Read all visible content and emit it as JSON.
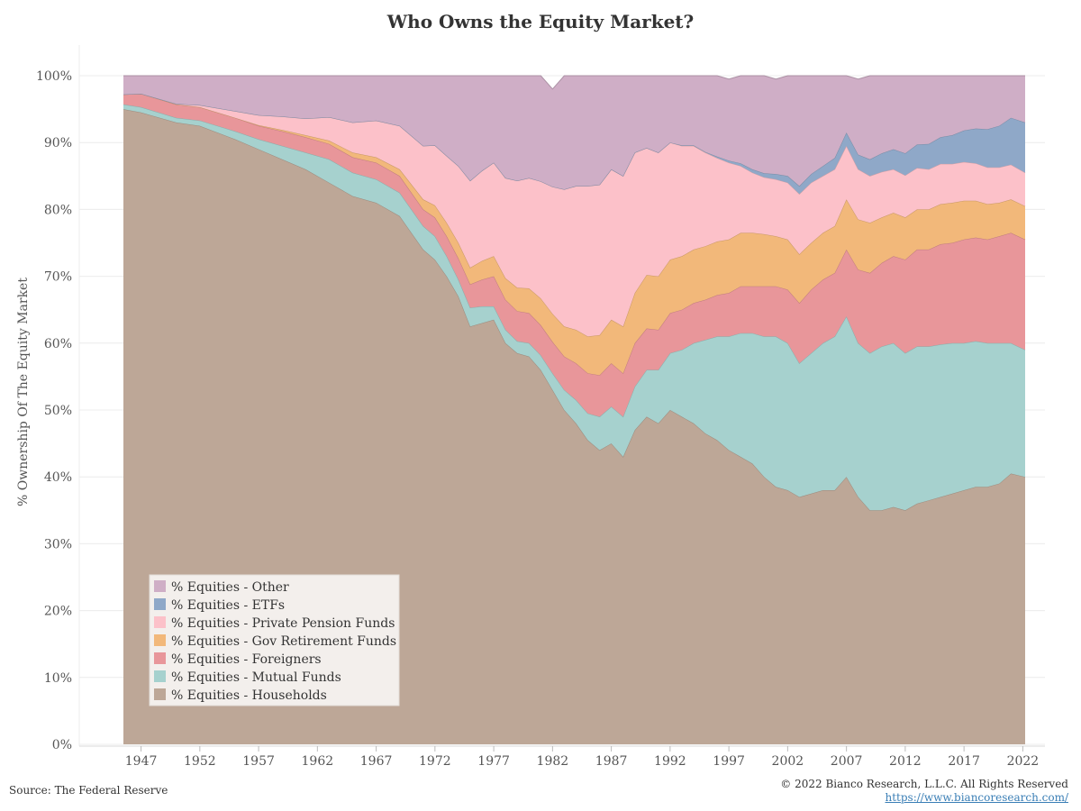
{
  "chart_data": {
    "type": "area",
    "stacked": true,
    "title": "Who Owns the Equity Market?",
    "ylabel": "% Ownership Of The Equity Market",
    "xlabel": "",
    "xlim": [
      1945.5,
      2022.2
    ],
    "ylim": [
      0,
      100
    ],
    "x_ticks": [
      1947,
      1952,
      1957,
      1962,
      1967,
      1972,
      1977,
      1982,
      1987,
      1992,
      1997,
      2002,
      2007,
      2012,
      2017,
      2022
    ],
    "y_ticks": [
      0,
      10,
      20,
      30,
      40,
      50,
      60,
      70,
      80,
      90,
      100
    ],
    "y_tick_labels": [
      "0%",
      "10%",
      "20%",
      "30%",
      "40%",
      "50%",
      "60%",
      "70%",
      "80%",
      "90%",
      "100%"
    ],
    "legend_position": "bottom-left",
    "grid": true,
    "x": [
      1945.5,
      1947,
      1950,
      1952,
      1955,
      1957,
      1959,
      1961,
      1963,
      1965,
      1967,
      1969,
      1971,
      1972,
      1973,
      1974,
      1975,
      1976,
      1977,
      1978,
      1979,
      1980,
      1981,
      1982,
      1983,
      1984,
      1985,
      1986,
      1987,
      1988,
      1989,
      1990,
      1991,
      1992,
      1993,
      1994,
      1995,
      1996,
      1997,
      1998,
      1999,
      2000,
      2001,
      2002,
      2003,
      2004,
      2005,
      2006,
      2007,
      2008,
      2009,
      2010,
      2011,
      2012,
      2013,
      2014,
      2015,
      2016,
      2017,
      2018,
      2019,
      2020,
      2021,
      2022.2
    ],
    "series": [
      {
        "name": "% Equities - Households",
        "color": "#bda797",
        "values": [
          95,
          94.5,
          93,
          92.5,
          90.5,
          89,
          87.5,
          86,
          84,
          82,
          81,
          79,
          74,
          72.5,
          70,
          67,
          62.5,
          63,
          63.5,
          60,
          58.5,
          58,
          56,
          53,
          50,
          48,
          45.5,
          44,
          45,
          43,
          47,
          49,
          48,
          50,
          49,
          48,
          46.5,
          45.5,
          44,
          43,
          42,
          40,
          38.5,
          38,
          37,
          37.5,
          38,
          38,
          40,
          37,
          35,
          35,
          35.5,
          35,
          36,
          36.5,
          37,
          37.5,
          38,
          38.5,
          38.5,
          39,
          40.5,
          40
        ]
      },
      {
        "name": "% Equities - Mutual Funds",
        "color": "#a6d1ce",
        "values": [
          0.7,
          0.8,
          0.7,
          0.8,
          1.2,
          1.5,
          2,
          2.5,
          3.5,
          3.5,
          3.5,
          3.5,
          3.5,
          3.5,
          3,
          2.5,
          2.8,
          2.5,
          2,
          2,
          1.8,
          2,
          2.2,
          2.5,
          3,
          3.5,
          4,
          5,
          5.5,
          6,
          6.5,
          7,
          8,
          8.5,
          10,
          12,
          14,
          15.5,
          17,
          18.5,
          19.5,
          21,
          22.5,
          22,
          20,
          21,
          22,
          23,
          24,
          23,
          23.5,
          24.5,
          24.5,
          23.5,
          23.5,
          23,
          22.8,
          22.5,
          22,
          21.8,
          21.5,
          21,
          19.5,
          19
        ]
      },
      {
        "name": "% Equities - Foreigners",
        "color": "#e8969a",
        "values": [
          1.5,
          2,
          2,
          2,
          2,
          2,
          2.2,
          2.3,
          2.3,
          2.3,
          2.5,
          2.5,
          2.5,
          2.8,
          3,
          3.2,
          3.5,
          4,
          4.5,
          4.5,
          4.5,
          4.5,
          4.5,
          4.7,
          5,
          5.5,
          6,
          6.2,
          6.5,
          6.5,
          6.5,
          6.2,
          6,
          6,
          6,
          6,
          6,
          6.2,
          6.5,
          7,
          7,
          7.5,
          7.5,
          8,
          9,
          9.5,
          9.5,
          9.5,
          10,
          11,
          12,
          12.5,
          13,
          14,
          14.5,
          14.5,
          15,
          15,
          15.5,
          15.5,
          15.5,
          16,
          16.5,
          16.5
        ]
      },
      {
        "name": "% Equities - Gov Retirement Funds",
        "color": "#f2b87a",
        "values": [
          0,
          0,
          0,
          0,
          0,
          0.1,
          0.2,
          0.3,
          0.5,
          0.7,
          0.8,
          1,
          1.5,
          1.8,
          2,
          2.3,
          2.5,
          2.8,
          3,
          3.2,
          3.5,
          3.7,
          4,
          4.2,
          4.5,
          5,
          5.5,
          6,
          6.5,
          7,
          7.5,
          8,
          8,
          8,
          8,
          8,
          8,
          8,
          8,
          8,
          8,
          7.8,
          7.5,
          7.5,
          7.3,
          7,
          7,
          7,
          7.5,
          7.5,
          7.5,
          6.8,
          6.5,
          6.3,
          6,
          6,
          6,
          6,
          5.8,
          5.5,
          5.3,
          5,
          5,
          5
        ]
      },
      {
        "name": "% Equities - Private Pension Funds",
        "color": "#fcc1c9",
        "values": [
          0,
          0,
          0.1,
          0.3,
          1,
          1.5,
          2,
          2.5,
          3.5,
          4.5,
          5.5,
          6.5,
          8,
          9,
          10,
          11.5,
          13,
          13.5,
          14,
          15,
          16,
          16.5,
          17.5,
          19,
          20.5,
          21.5,
          22.5,
          22.5,
          22.5,
          22.5,
          21,
          19,
          18.5,
          17.5,
          16.5,
          15.5,
          14,
          12.5,
          11.5,
          10,
          9,
          8.5,
          8.5,
          8.5,
          9,
          9,
          8.5,
          8.5,
          8,
          7.5,
          7,
          6.8,
          6.5,
          6.3,
          6.2,
          6,
          6,
          5.8,
          5.8,
          5.6,
          5.5,
          5.3,
          5.2,
          5
        ]
      },
      {
        "name": "% Equities - ETFs",
        "color": "#8fa8c8",
        "values": [
          0,
          0,
          0,
          0,
          0,
          0,
          0,
          0,
          0,
          0,
          0,
          0,
          0,
          0,
          0,
          0,
          0,
          0,
          0,
          0,
          0,
          0,
          0,
          0,
          0,
          0,
          0,
          0,
          0,
          0,
          0,
          0,
          0,
          0,
          0.1,
          0.1,
          0.1,
          0.2,
          0.3,
          0.4,
          0.5,
          0.6,
          0.8,
          1,
          1.2,
          1.3,
          1.5,
          1.7,
          2,
          2.2,
          2.5,
          2.8,
          3,
          3.3,
          3.5,
          3.8,
          4,
          4.3,
          4.7,
          5.2,
          5.7,
          6.2,
          7,
          7.5
        ]
      },
      {
        "name": "% Equities - Other",
        "color": "#cfaec6",
        "values": [
          2.8,
          2.7,
          4.2,
          4.4,
          5.3,
          5.9,
          6.1,
          6.4,
          6.2,
          7,
          6.7,
          7.5,
          10.5,
          11.4,
          12,
          13.5,
          15.7,
          14.2,
          13,
          15.3,
          15.7,
          15.3,
          15.8,
          14.6,
          17,
          16.5,
          16.5,
          16.3,
          15,
          15,
          11.5,
          10.8,
          11.5,
          10,
          10.4,
          10.4,
          11.4,
          12.1,
          12.2,
          13.1,
          14,
          14.6,
          14.2,
          15,
          16.5,
          14.7,
          13.5,
          12.3,
          8.5,
          11.3,
          12.5,
          12.6,
          12,
          11.6,
          10.3,
          10.2,
          9.2,
          8.9,
          8.2,
          7.9,
          8,
          7.5,
          6.3,
          7
        ]
      }
    ]
  },
  "footer": {
    "source": "Source: The Federal Reserve",
    "copyright": "© 2022 Bianco Research, L.L.C. All Rights Reserved",
    "url": "https://www.biancoresearch.com/"
  }
}
